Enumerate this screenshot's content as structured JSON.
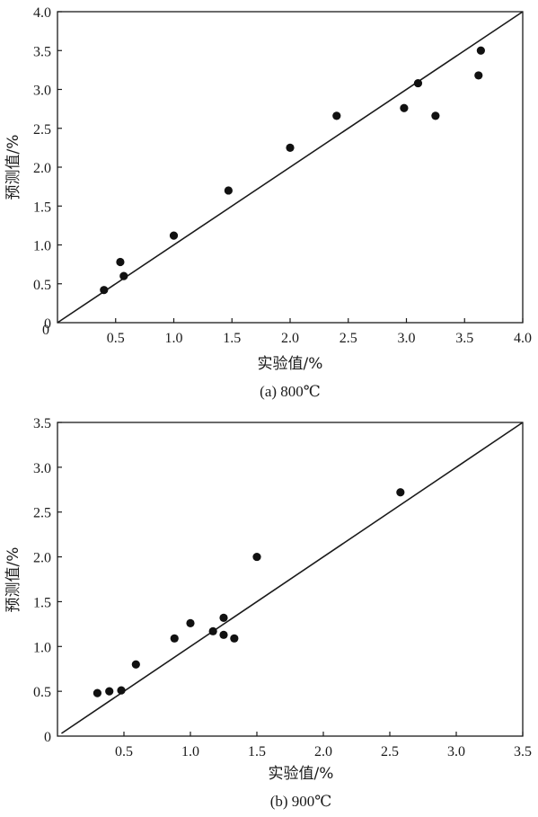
{
  "chart_data": [
    {
      "type": "scatter",
      "title": "",
      "caption": "(a) 800℃",
      "xlabel": "实验值/%",
      "ylabel": "预测值/%",
      "xlim": [
        0,
        4.0
      ],
      "ylim": [
        0,
        4.0
      ],
      "xticks": [
        "0.5",
        "1.0",
        "1.5",
        "2.0",
        "2.5",
        "3.0",
        "3.5",
        "4.0"
      ],
      "yticks": [
        "0",
        "0.5",
        "1.0",
        "1.5",
        "2.0",
        "2.5",
        "3.0",
        "3.5",
        "4.0"
      ],
      "reference_line": {
        "from": [
          0,
          0
        ],
        "to": [
          4.0,
          4.0
        ]
      },
      "points": [
        {
          "x": 0.4,
          "y": 0.42
        },
        {
          "x": 0.54,
          "y": 0.78
        },
        {
          "x": 0.57,
          "y": 0.6
        },
        {
          "x": 1.0,
          "y": 1.12
        },
        {
          "x": 1.47,
          "y": 1.7
        },
        {
          "x": 2.0,
          "y": 2.25
        },
        {
          "x": 2.4,
          "y": 2.66
        },
        {
          "x": 2.98,
          "y": 2.76
        },
        {
          "x": 3.1,
          "y": 3.08
        },
        {
          "x": 3.25,
          "y": 2.66
        },
        {
          "x": 3.62,
          "y": 3.18
        },
        {
          "x": 3.64,
          "y": 3.5
        }
      ]
    },
    {
      "type": "scatter",
      "title": "",
      "caption": "(b) 900℃",
      "xlabel": "实验值/%",
      "ylabel": "预测值/%",
      "xlim": [
        0,
        3.5
      ],
      "ylim": [
        0,
        3.5
      ],
      "xticks": [
        "0.5",
        "1.0",
        "1.5",
        "2.0",
        "2.5",
        "3.0",
        "3.5"
      ],
      "yticks": [
        "0",
        "0.5",
        "1.0",
        "1.5",
        "2.0",
        "2.5",
        "3.0",
        "3.5"
      ],
      "reference_line": {
        "from": [
          0.03,
          0.03
        ],
        "to": [
          3.5,
          3.5
        ]
      },
      "points": [
        {
          "x": 0.3,
          "y": 0.48
        },
        {
          "x": 0.39,
          "y": 0.5
        },
        {
          "x": 0.48,
          "y": 0.51
        },
        {
          "x": 0.59,
          "y": 0.8
        },
        {
          "x": 0.88,
          "y": 1.09
        },
        {
          "x": 1.0,
          "y": 1.26
        },
        {
          "x": 1.17,
          "y": 1.17
        },
        {
          "x": 1.25,
          "y": 1.32
        },
        {
          "x": 1.25,
          "y": 1.13
        },
        {
          "x": 1.33,
          "y": 1.09
        },
        {
          "x": 1.5,
          "y": 2.0
        },
        {
          "x": 2.58,
          "y": 2.72
        }
      ]
    }
  ]
}
